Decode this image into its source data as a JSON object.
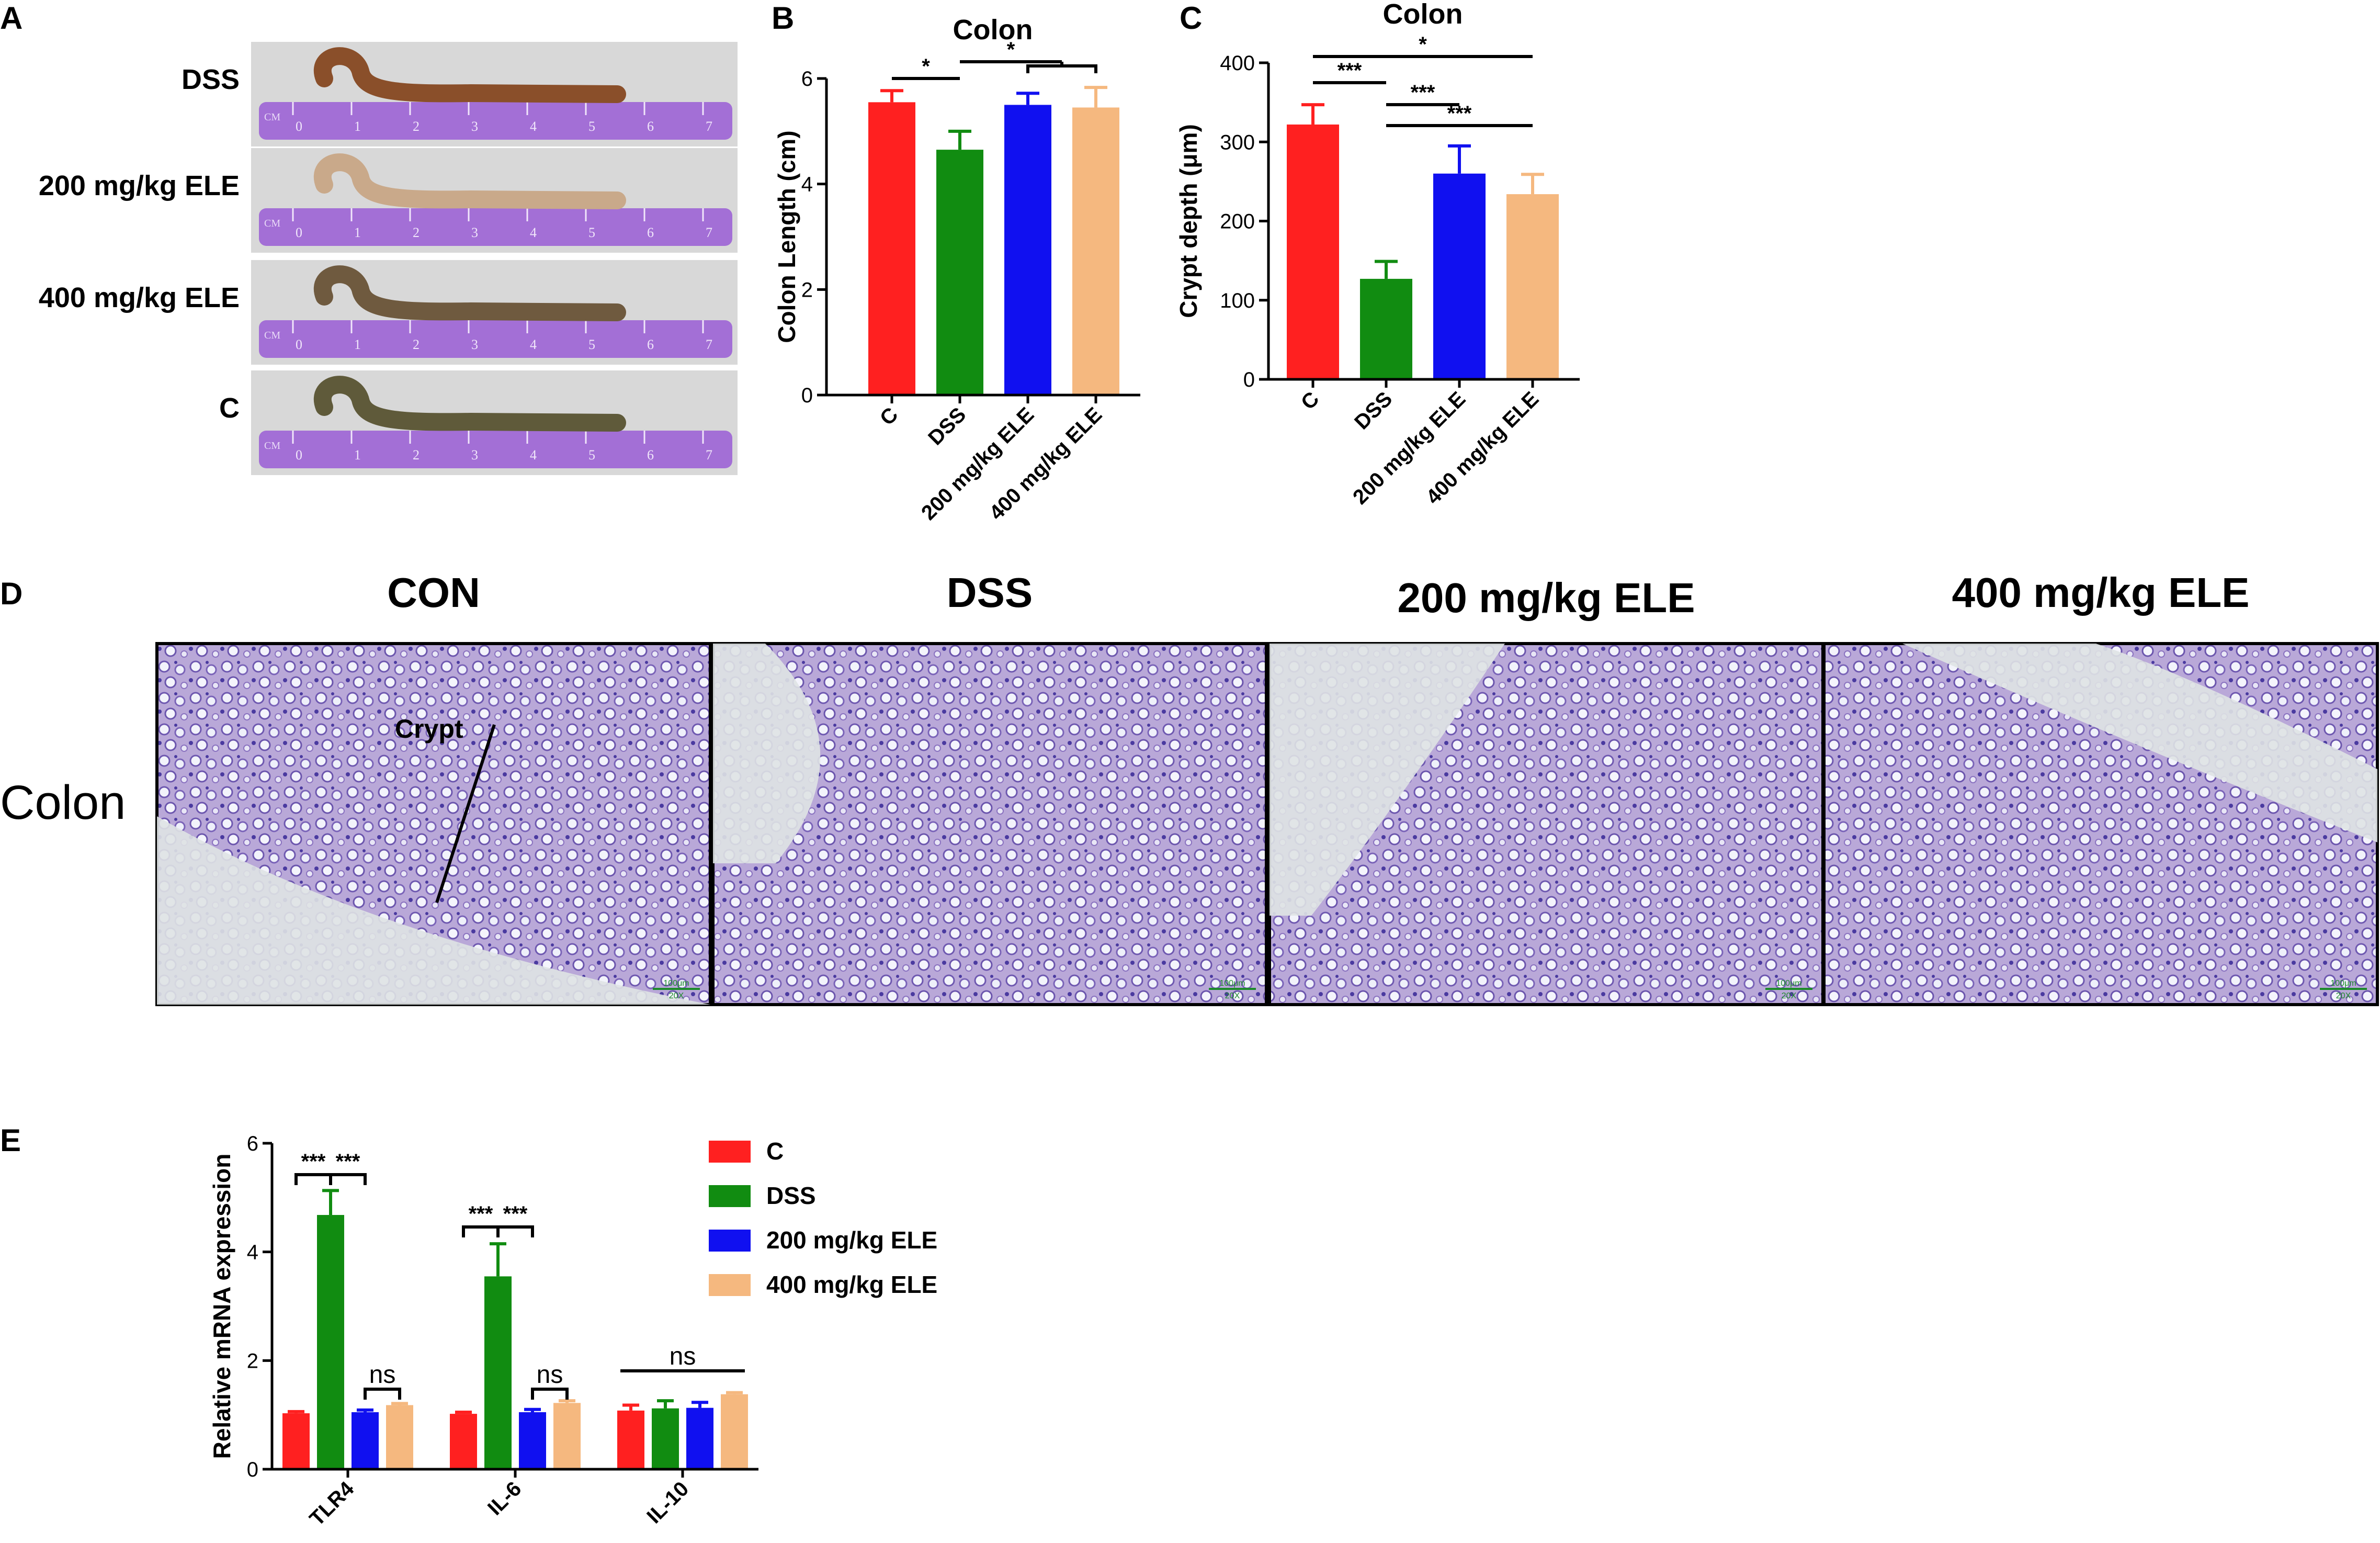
{
  "panels": {
    "A": {
      "letter": "A",
      "rows": [
        {
          "label": "DSS",
          "tissue": "#8a4f2a"
        },
        {
          "label": "200 mg/kg ELE",
          "tissue": "#c9a98a"
        },
        {
          "label": "400 mg/kg ELE",
          "tissue": "#6f5a3f"
        },
        {
          "label": "C",
          "tissue": "#5f5a3a"
        }
      ],
      "ruler": {
        "unit": "CM",
        "ticks": [
          "0",
          "1",
          "2",
          "3",
          "4",
          "5",
          "6",
          "7"
        ],
        "color": "#a36fd6"
      }
    },
    "B": {
      "letter": "B"
    },
    "C": {
      "letter": "C"
    },
    "D": {
      "letter": "D",
      "row_label": "Colon",
      "columns": [
        "CON",
        "DSS",
        "200 mg/kg ELE",
        "400 mg/kg ELE"
      ],
      "annotation": "Crypt",
      "scale_text": "100μm",
      "mag_text": "20X"
    },
    "E": {
      "letter": "E"
    }
  },
  "colors": {
    "C": "#ff2020",
    "DSS": "#118c11",
    "200 mg/kg ELE": "#1010f0",
    "400 mg/kg ELE": "#f5b87f"
  },
  "chart_data": [
    {
      "panel": "B",
      "type": "bar",
      "title": "Colon",
      "ylabel": "Colon Length (cm)",
      "categories": [
        "C",
        "DSS",
        "200 mg/kg ELE",
        "400 mg/kg ELE"
      ],
      "values": [
        5.55,
        4.65,
        5.5,
        5.45
      ],
      "errors": [
        0.22,
        0.35,
        0.22,
        0.38
      ],
      "ylim": [
        0,
        6
      ],
      "yticks": [
        0,
        2,
        4,
        6
      ],
      "significance": [
        {
          "label": "*",
          "from": 0,
          "to": 1
        },
        {
          "label": "*",
          "from": 1,
          "to": [
            2,
            3
          ]
        }
      ]
    },
    {
      "panel": "C",
      "type": "bar",
      "title": "Colon",
      "ylabel": "Crypt depth (μm)",
      "categories": [
        "C",
        "DSS",
        "200 mg/kg ELE",
        "400 mg/kg ELE"
      ],
      "values": [
        322,
        127,
        260,
        234
      ],
      "errors": [
        25,
        22,
        35,
        25
      ],
      "ylim": [
        0,
        400
      ],
      "yticks": [
        0,
        100,
        200,
        300,
        400
      ],
      "significance": [
        {
          "label": "*",
          "from": 0,
          "to": 3
        },
        {
          "label": "***",
          "from": 0,
          "to": 1
        },
        {
          "label": "***",
          "from": 1,
          "to": 2
        },
        {
          "label": "***",
          "from": 1,
          "to": 3
        }
      ]
    },
    {
      "panel": "E",
      "type": "bar",
      "title": "",
      "ylabel": "Relative mRNA expression",
      "categories": [
        "TLR4",
        "IL-6",
        "IL-10"
      ],
      "series": [
        {
          "name": "C",
          "values": [
            1.03,
            1.02,
            1.08
          ],
          "errors": [
            0.03,
            0.03,
            0.1
          ]
        },
        {
          "name": "DSS",
          "values": [
            4.68,
            3.55,
            1.12
          ],
          "errors": [
            0.45,
            0.6,
            0.14
          ]
        },
        {
          "name": "200 mg/kg ELE",
          "values": [
            1.05,
            1.05,
            1.13
          ],
          "errors": [
            0.04,
            0.05,
            0.1
          ]
        },
        {
          "name": "400 mg/kg ELE",
          "values": [
            1.18,
            1.22,
            1.38
          ],
          "errors": [
            0.03,
            0.04,
            0.03
          ]
        }
      ],
      "ylim": [
        0,
        6
      ],
      "yticks": [
        0,
        2,
        4,
        6
      ],
      "legend": "right",
      "significance": [
        {
          "label": "***",
          "category": 0,
          "from": 0,
          "to": 1
        },
        {
          "label": "***",
          "category": 0,
          "from": 1,
          "to": 2
        },
        {
          "label": "ns",
          "category": 0,
          "from": 2,
          "to": 3
        },
        {
          "label": "***",
          "category": 1,
          "from": 0,
          "to": 1
        },
        {
          "label": "***",
          "category": 1,
          "from": 1,
          "to": 2
        },
        {
          "label": "ns",
          "category": 1,
          "from": 2,
          "to": 3
        },
        {
          "label": "ns",
          "category": 2,
          "from": 0,
          "to": 3
        }
      ]
    }
  ]
}
